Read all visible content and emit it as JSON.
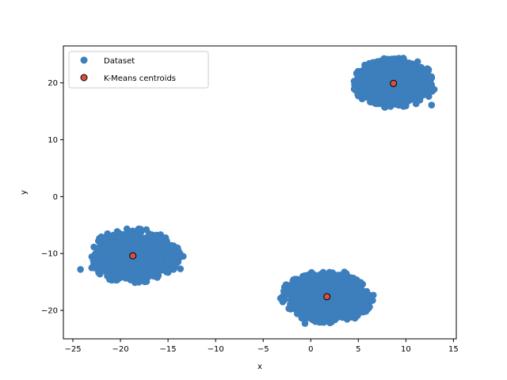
{
  "chart_data": {
    "type": "scatter",
    "title": "",
    "xlabel": "x",
    "ylabel": "y",
    "xlim": [
      -26,
      15.3
    ],
    "ylim": [
      -25,
      26.5
    ],
    "xticks": [
      -25,
      -20,
      -15,
      -10,
      -5,
      0,
      5,
      10,
      15
    ],
    "yticks": [
      -20,
      -10,
      0,
      10,
      20
    ],
    "grid": false,
    "legend_position": "top-left",
    "series": [
      {
        "name": "Dataset",
        "color": "#3d7ebd",
        "clusters": [
          {
            "center": [
              -18.7,
              -10.4
            ],
            "x_range": [
              -23.5,
              -13.7
            ],
            "y_range": [
              -15.3,
              -5.6
            ]
          },
          {
            "center": [
              1.7,
              -17.6
            ],
            "x_range": [
              -3.2,
              6.6
            ],
            "y_range": [
              -22.4,
              -12.9
            ]
          },
          {
            "center": [
              8.7,
              19.9
            ],
            "x_range": [
              4.3,
              13.2
            ],
            "y_range": [
              15.5,
              24.5
            ]
          }
        ],
        "outliers": [
          [
            -24.2,
            -12.8
          ],
          [
            -13.4,
            -10.5
          ],
          [
            -13.7,
            -12.7
          ],
          [
            12.7,
            16.1
          ],
          [
            -0.6,
            -22.3
          ]
        ]
      },
      {
        "name": "K-Means centroids",
        "color": "#d9503f",
        "edge_color": "#000000",
        "points": [
          [
            -18.7,
            -10.4
          ],
          [
            1.7,
            -17.6
          ],
          [
            8.7,
            19.9
          ]
        ]
      }
    ]
  }
}
